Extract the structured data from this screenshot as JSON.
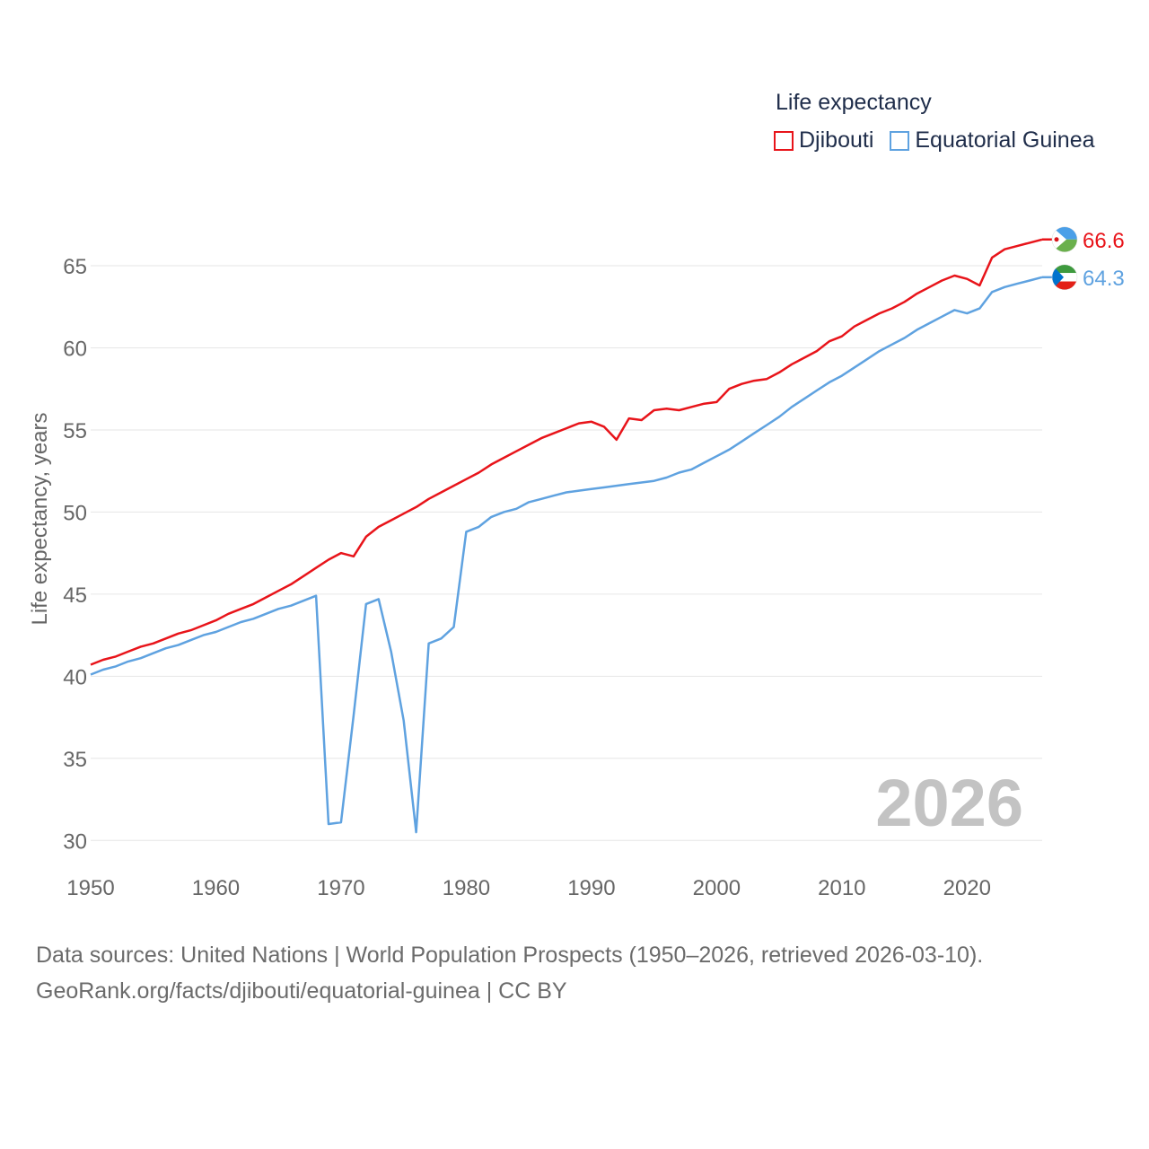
{
  "legend": {
    "title": "Life expectancy",
    "items": [
      {
        "label": "Djibouti",
        "color": "#e8141a"
      },
      {
        "label": "Equatorial Guinea",
        "color": "#5fa2e0"
      }
    ]
  },
  "source": {
    "line1": "Data sources: United Nations | World Population Prospects (1950–2026, retrieved 2026-03-10).",
    "line2": "GeoRank.org/facts/djibouti/equatorial-guinea | CC BY"
  },
  "chart_data": {
    "type": "line",
    "ylabel": "Life expectancy, years",
    "xlabel": "",
    "year_label": "2026",
    "xlim": [
      1950,
      2026
    ],
    "ylim": [
      27.5,
      68.5
    ],
    "x_ticks": [
      1950,
      1960,
      1970,
      1980,
      1990,
      2000,
      2010,
      2020
    ],
    "y_ticks": [
      30,
      35,
      40,
      45,
      50,
      55,
      60,
      65
    ],
    "series": [
      {
        "name": "Djibouti",
        "color": "#e8141a",
        "end_label": "66.6",
        "points": [
          [
            1950,
            40.7
          ],
          [
            1951,
            41.0
          ],
          [
            1952,
            41.2
          ],
          [
            1953,
            41.5
          ],
          [
            1954,
            41.8
          ],
          [
            1955,
            42.0
          ],
          [
            1956,
            42.3
          ],
          [
            1957,
            42.6
          ],
          [
            1958,
            42.8
          ],
          [
            1959,
            43.1
          ],
          [
            1960,
            43.4
          ],
          [
            1961,
            43.8
          ],
          [
            1962,
            44.1
          ],
          [
            1963,
            44.4
          ],
          [
            1964,
            44.8
          ],
          [
            1965,
            45.2
          ],
          [
            1966,
            45.6
          ],
          [
            1967,
            46.1
          ],
          [
            1968,
            46.6
          ],
          [
            1969,
            47.1
          ],
          [
            1970,
            47.5
          ],
          [
            1971,
            47.3
          ],
          [
            1972,
            48.5
          ],
          [
            1973,
            49.1
          ],
          [
            1974,
            49.5
          ],
          [
            1975,
            49.9
          ],
          [
            1976,
            50.3
          ],
          [
            1977,
            50.8
          ],
          [
            1978,
            51.2
          ],
          [
            1979,
            51.6
          ],
          [
            1980,
            52.0
          ],
          [
            1981,
            52.4
          ],
          [
            1982,
            52.9
          ],
          [
            1983,
            53.3
          ],
          [
            1984,
            53.7
          ],
          [
            1985,
            54.1
          ],
          [
            1986,
            54.5
          ],
          [
            1987,
            54.8
          ],
          [
            1988,
            55.1
          ],
          [
            1989,
            55.4
          ],
          [
            1990,
            55.5
          ],
          [
            1991,
            55.2
          ],
          [
            1992,
            54.4
          ],
          [
            1993,
            55.7
          ],
          [
            1994,
            55.6
          ],
          [
            1995,
            56.2
          ],
          [
            1996,
            56.3
          ],
          [
            1997,
            56.2
          ],
          [
            1998,
            56.4
          ],
          [
            1999,
            56.6
          ],
          [
            2000,
            56.7
          ],
          [
            2001,
            57.5
          ],
          [
            2002,
            57.8
          ],
          [
            2003,
            58.0
          ],
          [
            2004,
            58.1
          ],
          [
            2005,
            58.5
          ],
          [
            2006,
            59.0
          ],
          [
            2007,
            59.4
          ],
          [
            2008,
            59.8
          ],
          [
            2009,
            60.4
          ],
          [
            2010,
            60.7
          ],
          [
            2011,
            61.3
          ],
          [
            2012,
            61.7
          ],
          [
            2013,
            62.1
          ],
          [
            2014,
            62.4
          ],
          [
            2015,
            62.8
          ],
          [
            2016,
            63.3
          ],
          [
            2017,
            63.7
          ],
          [
            2018,
            64.1
          ],
          [
            2019,
            64.4
          ],
          [
            2020,
            64.2
          ],
          [
            2021,
            63.8
          ],
          [
            2022,
            65.5
          ],
          [
            2023,
            66.0
          ],
          [
            2024,
            66.2
          ],
          [
            2025,
            66.4
          ],
          [
            2026,
            66.6
          ]
        ]
      },
      {
        "name": "Equatorial Guinea",
        "color": "#5fa2e0",
        "end_label": "64.3",
        "points": [
          [
            1950,
            40.1
          ],
          [
            1951,
            40.4
          ],
          [
            1952,
            40.6
          ],
          [
            1953,
            40.9
          ],
          [
            1954,
            41.1
          ],
          [
            1955,
            41.4
          ],
          [
            1956,
            41.7
          ],
          [
            1957,
            41.9
          ],
          [
            1958,
            42.2
          ],
          [
            1959,
            42.5
          ],
          [
            1960,
            42.7
          ],
          [
            1961,
            43.0
          ],
          [
            1962,
            43.3
          ],
          [
            1963,
            43.5
          ],
          [
            1964,
            43.8
          ],
          [
            1965,
            44.1
          ],
          [
            1966,
            44.3
          ],
          [
            1967,
            44.6
          ],
          [
            1968,
            44.9
          ],
          [
            1969,
            31.0
          ],
          [
            1970,
            31.1
          ],
          [
            1971,
            37.6
          ],
          [
            1972,
            44.4
          ],
          [
            1973,
            44.7
          ],
          [
            1974,
            41.5
          ],
          [
            1975,
            37.3
          ],
          [
            1976,
            30.5
          ],
          [
            1977,
            42.0
          ],
          [
            1978,
            42.3
          ],
          [
            1979,
            43.0
          ],
          [
            1980,
            48.8
          ],
          [
            1981,
            49.1
          ],
          [
            1982,
            49.7
          ],
          [
            1983,
            50.0
          ],
          [
            1984,
            50.2
          ],
          [
            1985,
            50.6
          ],
          [
            1986,
            50.8
          ],
          [
            1987,
            51.0
          ],
          [
            1988,
            51.2
          ],
          [
            1989,
            51.3
          ],
          [
            1990,
            51.4
          ],
          [
            1991,
            51.5
          ],
          [
            1992,
            51.6
          ],
          [
            1993,
            51.7
          ],
          [
            1994,
            51.8
          ],
          [
            1995,
            51.9
          ],
          [
            1996,
            52.1
          ],
          [
            1997,
            52.4
          ],
          [
            1998,
            52.6
          ],
          [
            1999,
            53.0
          ],
          [
            2000,
            53.4
          ],
          [
            2001,
            53.8
          ],
          [
            2002,
            54.3
          ],
          [
            2003,
            54.8
          ],
          [
            2004,
            55.3
          ],
          [
            2005,
            55.8
          ],
          [
            2006,
            56.4
          ],
          [
            2007,
            56.9
          ],
          [
            2008,
            57.4
          ],
          [
            2009,
            57.9
          ],
          [
            2010,
            58.3
          ],
          [
            2011,
            58.8
          ],
          [
            2012,
            59.3
          ],
          [
            2013,
            59.8
          ],
          [
            2014,
            60.2
          ],
          [
            2015,
            60.6
          ],
          [
            2016,
            61.1
          ],
          [
            2017,
            61.5
          ],
          [
            2018,
            61.9
          ],
          [
            2019,
            62.3
          ],
          [
            2020,
            62.1
          ],
          [
            2021,
            62.4
          ],
          [
            2022,
            63.4
          ],
          [
            2023,
            63.7
          ],
          [
            2024,
            63.9
          ],
          [
            2025,
            64.1
          ],
          [
            2026,
            64.3
          ]
        ]
      }
    ]
  }
}
